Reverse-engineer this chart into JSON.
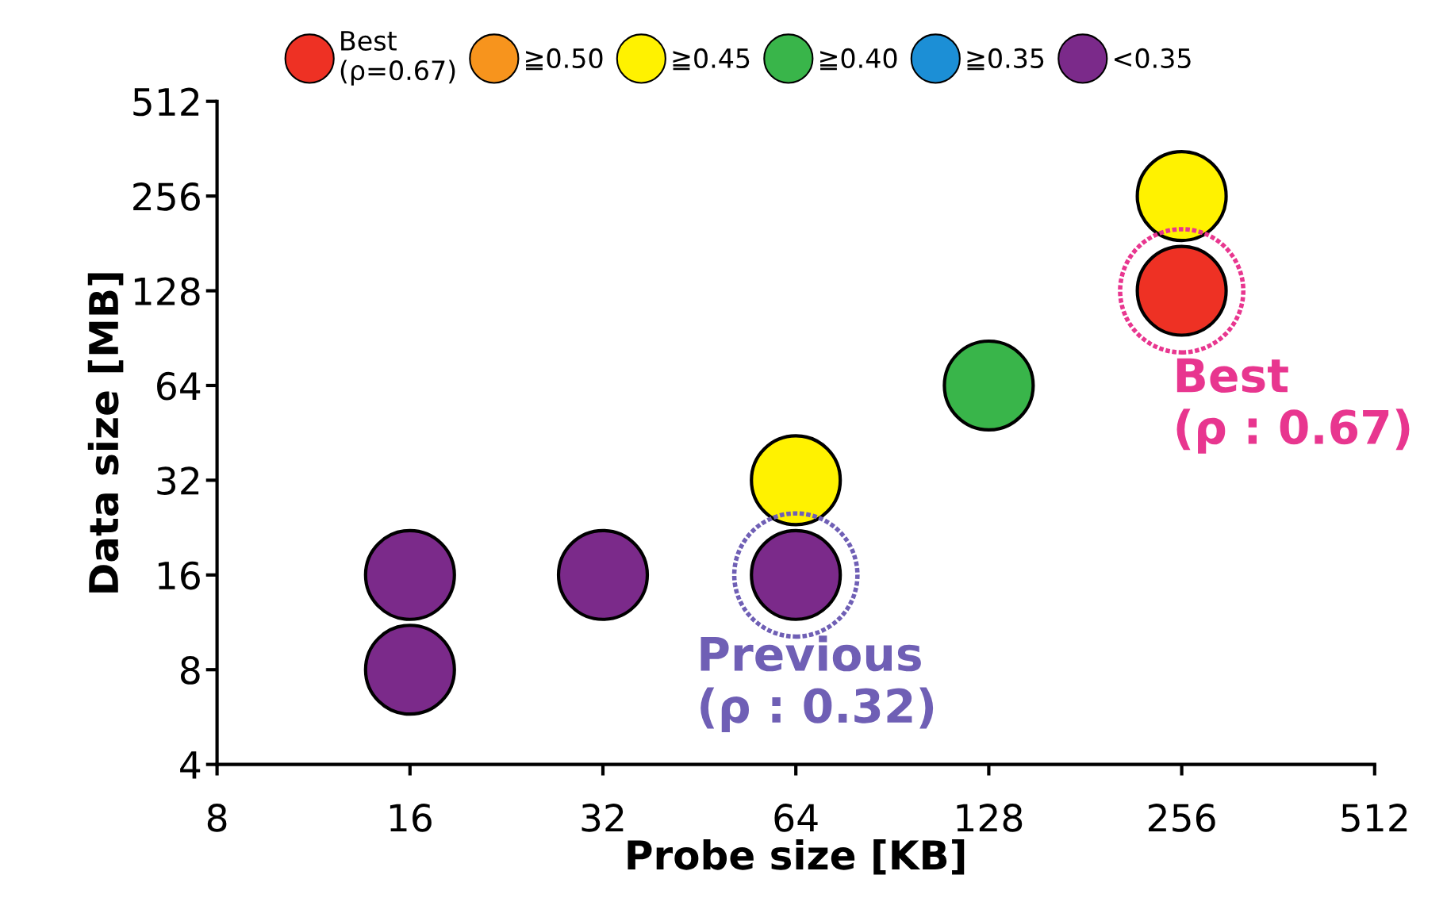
{
  "chart_data": {
    "type": "scatter",
    "xlabel": "Probe size [KB]",
    "ylabel": "Data size [MB]",
    "log": "xy",
    "xlim": [
      8,
      512
    ],
    "ylim": [
      4,
      512
    ],
    "xticks": [
      8,
      16,
      32,
      64,
      128,
      256,
      512
    ],
    "yticks": [
      4,
      8,
      16,
      32,
      64,
      128,
      256,
      512
    ],
    "grid": false,
    "legend": "top",
    "marker": "circle",
    "series": [
      {
        "name": "Best\n(ρ=0.67)",
        "color": "#ee3124",
        "x": [
          256
        ],
        "values": [
          128
        ]
      },
      {
        "name": "≧0.50",
        "color": "#f7941d"
      },
      {
        "name": "≧0.45",
        "color": "#fff200",
        "x": [
          64,
          256
        ],
        "values": [
          32,
          256
        ]
      },
      {
        "name": "≧0.40",
        "color": "#39b54a",
        "x": [
          128
        ],
        "values": [
          64
        ]
      },
      {
        "name": "≧0.35",
        "color": "#1c8fd6"
      },
      {
        "name": "<0.35",
        "color": "#7b2a8a",
        "x": [
          16,
          16,
          32,
          64
        ],
        "values": [
          16,
          8,
          16,
          16
        ]
      }
    ],
    "annotations": [
      {
        "text": "Best\n(ρ : 0.67)",
        "x": 256,
        "y": 128
      },
      {
        "text": "Previous\n(ρ : 0.32)",
        "x": 64,
        "y": 16
      }
    ]
  }
}
